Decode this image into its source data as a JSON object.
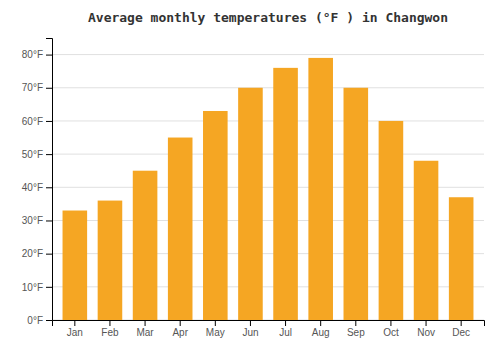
{
  "chart_data": {
    "type": "bar",
    "title": "Average monthly temperatures (°F ) in Changwon",
    "categories": [
      "Jan",
      "Feb",
      "Mar",
      "Apr",
      "May",
      "Jun",
      "Jul",
      "Aug",
      "Sep",
      "Oct",
      "Nov",
      "Dec"
    ],
    "values": [
      33,
      36,
      45,
      55,
      63,
      70,
      76,
      79,
      70,
      60,
      48,
      37
    ],
    "color": "#F5A623",
    "ylim": [
      0,
      85
    ],
    "yticks": [
      {
        "value": 0,
        "label": "0°F"
      },
      {
        "value": 10,
        "label": "10°F"
      },
      {
        "value": 20,
        "label": "20°F"
      },
      {
        "value": 30,
        "label": "30°F"
      },
      {
        "value": 40,
        "label": "40°F"
      },
      {
        "value": 50,
        "label": "50°F"
      },
      {
        "value": 60,
        "label": "60°F"
      },
      {
        "value": 70,
        "label": "70°F"
      },
      {
        "value": 80,
        "label": "80°F"
      }
    ],
    "grid": true
  }
}
